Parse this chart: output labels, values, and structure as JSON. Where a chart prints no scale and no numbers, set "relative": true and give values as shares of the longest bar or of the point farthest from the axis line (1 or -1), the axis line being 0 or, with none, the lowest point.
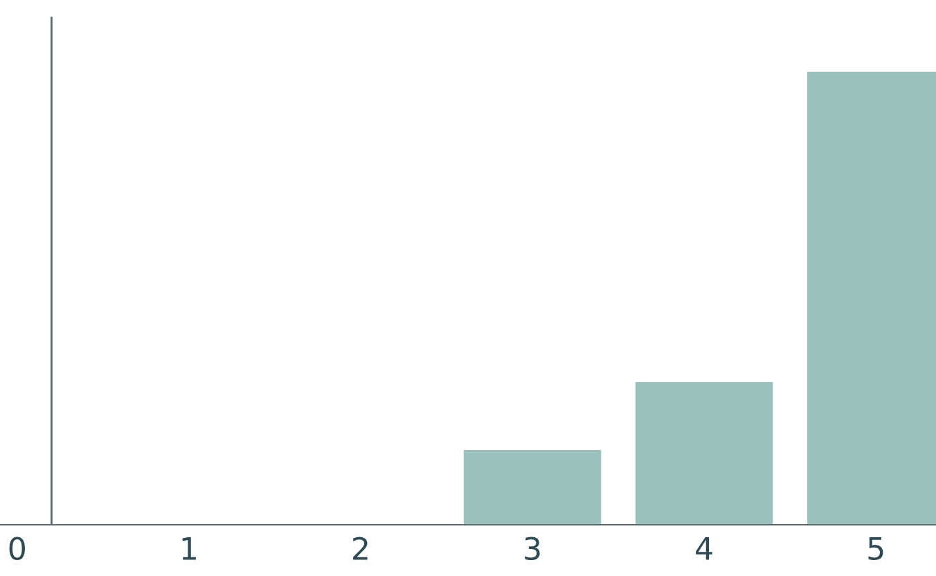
{
  "chart_data": {
    "type": "bar",
    "relative": true,
    "x": [
      0,
      1,
      2,
      3,
      4,
      5
    ],
    "values": [
      0,
      0,
      0,
      0.165,
      0.315,
      1
    ],
    "color": "#9cc0bc",
    "grid": false,
    "legend": false,
    "xlim": [
      -0.1,
      5.35
    ],
    "xticks": [
      0,
      1,
      2,
      3,
      4,
      5
    ],
    "ref_lines": [
      {
        "axis": "x",
        "value": 0.2,
        "color": "#5a6a70",
        "line_style": "solid"
      }
    ]
  }
}
